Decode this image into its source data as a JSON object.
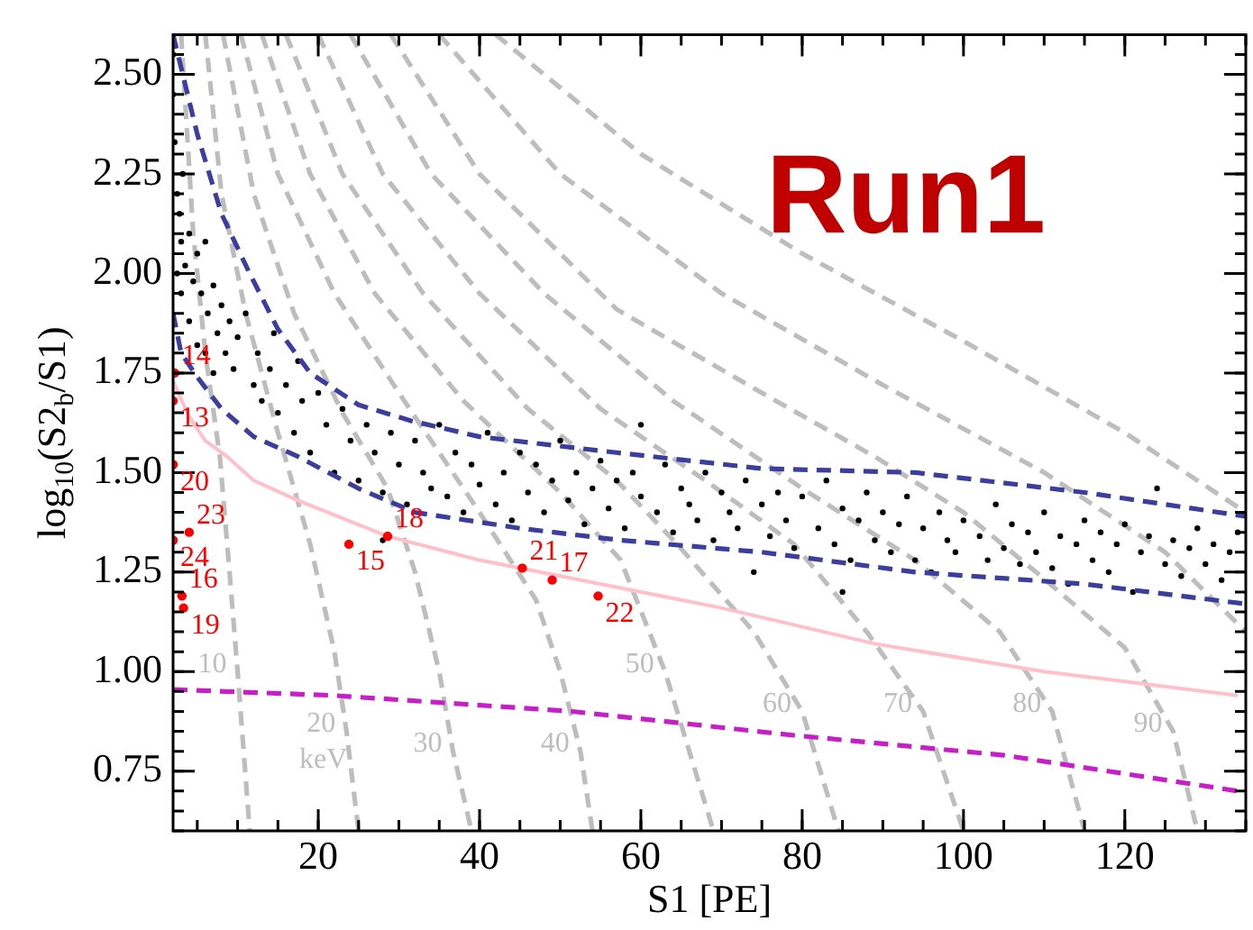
{
  "chart_data": {
    "type": "scatter",
    "xlabel": "S1 [PE]",
    "ylabel": "log$_{10}$(S2$_{b}$/S1)",
    "xlim": [
      2,
      135
    ],
    "ylim": [
      0.6,
      2.6
    ],
    "xticks": [
      20,
      40,
      60,
      80,
      100,
      120
    ],
    "yticks": [
      {
        "value": 0.75,
        "label": "0.75"
      },
      {
        "value": 1,
        "label": "1.00"
      },
      {
        "value": 1.25,
        "label": "1.25"
      },
      {
        "value": 1.5,
        "label": "1.50"
      },
      {
        "value": 1.75,
        "label": "1.75"
      },
      {
        "value": 2,
        "label": "2.00"
      },
      {
        "value": 2.25,
        "label": "2.25"
      },
      {
        "value": 2.5,
        "label": "2.50"
      }
    ],
    "grid": false,
    "legend": false,
    "annotations": [
      "Run1",
      "keV",
      {
        "text": "14",
        "x": 2.2,
        "y": 1.75
      },
      {
        "text": "13",
        "x": 2,
        "y": 1.68
      },
      {
        "text": "23",
        "x": 4,
        "y": 1.35
      },
      {
        "text": "20",
        "x": 2,
        "y": 1.52
      },
      {
        "text": "16",
        "x": 3.1,
        "y": 1.19
      },
      {
        "text": "24",
        "x": 2,
        "y": 1.33
      },
      {
        "text": "17",
        "x": 49,
        "y": 1.23
      },
      {
        "text": "19",
        "x": 3.3,
        "y": 1.16
      },
      {
        "text": "18",
        "x": 28.6,
        "y": 1.34
      },
      {
        "text": "15",
        "x": 23.8,
        "y": 1.32
      },
      {
        "text": "21",
        "x": 45.3,
        "y": 1.26
      },
      {
        "text": "22",
        "x": 54.7,
        "y": 1.19
      }
    ],
    "series": [
      {
        "type": "line",
        "name": "10",
        "color": "#bdbdbd",
        "line_style": "dashed",
        "marker": "none",
        "x": [
          3,
          4.5,
          6,
          7.8,
          9,
          10,
          11.5
        ],
        "values": [
          2.6,
          2.1,
          1.8,
          1.54,
          1.25,
          1.0,
          0.6
        ]
      },
      {
        "type": "line",
        "name": "20",
        "color": "#bdbdbd",
        "line_style": "dashed",
        "marker": "none",
        "x": [
          6,
          8,
          11,
          15,
          19,
          22,
          23.5,
          25
        ],
        "values": [
          2.6,
          2.2,
          1.9,
          1.6,
          1.32,
          1.05,
          0.85,
          0.6
        ]
      },
      {
        "type": "line",
        "name": "30",
        "color": "#bdbdbd",
        "line_style": "dashed",
        "marker": "none",
        "x": [
          8.2,
          12,
          17,
          23,
          28.6,
          32,
          35,
          36.7,
          39
        ],
        "values": [
          2.6,
          2.2,
          1.9,
          1.65,
          1.46,
          1.25,
          1.0,
          0.8,
          0.6
        ]
      },
      {
        "type": "line",
        "name": "40",
        "color": "#bdbdbd",
        "line_style": "dashed",
        "marker": "none",
        "x": [
          10.4,
          15,
          22,
          30,
          40,
          47,
          50,
          52.5,
          54
        ],
        "values": [
          2.6,
          2.25,
          1.95,
          1.7,
          1.4,
          1.18,
          1.0,
          0.8,
          0.6
        ]
      },
      {
        "type": "line",
        "name": "50",
        "color": "#bdbdbd",
        "line_style": "dashed",
        "marker": "none",
        "x": [
          13,
          19,
          27,
          38,
          50,
          57.5,
          63,
          69
        ],
        "values": [
          2.6,
          2.25,
          1.95,
          1.68,
          1.45,
          1.28,
          1.0,
          0.6
        ]
      },
      {
        "type": "line",
        "name": "60",
        "color": "#bdbdbd",
        "line_style": "dashed",
        "marker": "none",
        "x": [
          16,
          23,
          33,
          46,
          57,
          64.5,
          74,
          80,
          84.5
        ],
        "values": [
          2.6,
          2.25,
          1.95,
          1.66,
          1.48,
          1.32,
          1.1,
          0.9,
          0.6
        ]
      },
      {
        "type": "line",
        "name": "70",
        "color": "#bdbdbd",
        "line_style": "dashed",
        "marker": "none",
        "x": [
          20,
          28,
          40,
          55,
          68,
          79,
          88,
          95,
          100
        ],
        "values": [
          2.6,
          2.25,
          1.95,
          1.66,
          1.48,
          1.32,
          1.1,
          0.9,
          0.6
        ]
      },
      {
        "type": "line",
        "name": "80",
        "color": "#bdbdbd",
        "line_style": "dashed",
        "marker": "none",
        "x": [
          24,
          34,
          48,
          64,
          80,
          94,
          104.5,
          111,
          115
        ],
        "values": [
          2.6,
          2.25,
          1.95,
          1.68,
          1.46,
          1.28,
          1.1,
          0.9,
          0.6
        ]
      },
      {
        "type": "line",
        "name": "90",
        "color": "#bdbdbd",
        "line_style": "dashed",
        "marker": "none",
        "x": [
          29,
          40,
          57,
          75,
          89,
          100,
          109,
          120,
          126,
          129
        ],
        "values": [
          2.6,
          2.25,
          1.91,
          1.7,
          1.54,
          1.4,
          1.25,
          1.06,
          0.85,
          0.6
        ]
      },
      {
        "type": "line",
        "color": "#bdbdbd",
        "line_style": "dashed",
        "marker": "none",
        "x": [
          35,
          50,
          70,
          90,
          110,
          125,
          135
        ],
        "values": [
          2.6,
          2.25,
          1.95,
          1.72,
          1.5,
          1.3,
          1.1
        ]
      },
      {
        "type": "line",
        "color": "#bdbdbd",
        "line_style": "dashed",
        "marker": "none",
        "x": [
          42,
          60,
          80,
          100,
          120,
          135
        ],
        "values": [
          2.6,
          2.3,
          2.05,
          1.83,
          1.6,
          1.4
        ]
      },
      {
        "type": "line",
        "color": "#ffc0cb",
        "line_style": "solid",
        "marker": "none",
        "x": [
          2,
          4,
          6,
          8.7,
          12,
          17.5,
          28.6,
          40,
          57.5,
          70,
          89,
          110,
          134
        ],
        "values": [
          1.73,
          1.64,
          1.58,
          1.54,
          1.48,
          1.43,
          1.34,
          1.28,
          1.21,
          1.16,
          1.07,
          1.0,
          0.94
        ]
      },
      {
        "type": "line",
        "color": "#c81ec8",
        "line_style": "dashed",
        "marker": "none",
        "x": [
          2,
          22,
          51.5,
          79,
          105,
          134
        ],
        "values": [
          0.955,
          0.94,
          0.9,
          0.84,
          0.79,
          0.7
        ]
      },
      {
        "color": "#000000",
        "marker": "circle",
        "x": [
          2,
          2,
          2.2,
          2.5,
          2.8,
          3,
          3.2,
          3.5,
          4,
          4.5,
          5,
          5.5,
          6,
          6.3,
          7,
          7.5,
          8,
          8.5,
          9,
          9.5,
          10,
          3,
          4,
          5,
          6,
          7,
          2.5,
          11,
          12,
          12.5,
          13,
          14,
          14.5,
          15,
          16,
          17,
          17.5,
          18,
          19,
          20,
          21,
          22,
          23,
          24,
          25,
          26,
          27,
          28,
          29,
          30,
          31,
          32,
          33,
          34,
          35,
          36,
          37,
          38,
          39,
          40,
          41,
          42,
          43,
          44,
          45,
          46,
          47,
          48,
          49,
          50,
          51,
          52,
          53,
          54,
          55,
          56,
          57,
          58,
          59,
          60,
          62,
          63,
          64,
          65,
          66,
          67,
          68,
          69,
          70,
          71,
          72,
          73,
          74,
          75,
          76,
          77,
          78,
          79,
          80,
          82,
          83,
          84,
          85,
          86,
          87,
          88,
          89,
          90,
          91,
          92,
          93,
          94,
          95,
          96,
          97,
          98,
          99,
          100,
          102,
          103,
          104,
          105,
          106,
          107,
          108,
          109,
          110,
          111,
          112,
          113,
          114,
          115,
          116,
          117,
          118,
          119,
          120,
          121,
          122,
          123,
          124,
          125,
          126,
          127,
          128,
          129,
          130,
          131,
          132,
          133,
          134,
          60,
          85,
          28
        ],
        "values": [
          2.55,
          2.45,
          2.33,
          2.2,
          2.15,
          2.08,
          2.25,
          2.02,
          2.1,
          1.98,
          2.05,
          1.95,
          2.08,
          1.9,
          1.97,
          1.85,
          1.92,
          1.8,
          1.88,
          1.76,
          1.84,
          1.95,
          1.88,
          1.82,
          1.8,
          1.75,
          2.0,
          1.9,
          1.72,
          1.8,
          1.68,
          1.76,
          1.85,
          1.65,
          1.72,
          1.6,
          1.78,
          1.68,
          1.55,
          1.7,
          1.62,
          1.5,
          1.66,
          1.58,
          1.48,
          1.62,
          1.55,
          1.45,
          1.6,
          1.52,
          1.42,
          1.58,
          1.5,
          1.46,
          1.62,
          1.44,
          1.55,
          1.4,
          1.52,
          1.47,
          1.6,
          1.42,
          1.5,
          1.38,
          1.55,
          1.45,
          1.52,
          1.4,
          1.48,
          1.58,
          1.43,
          1.5,
          1.37,
          1.46,
          1.53,
          1.41,
          1.48,
          1.36,
          1.5,
          1.44,
          1.4,
          1.52,
          1.35,
          1.46,
          1.42,
          1.38,
          1.5,
          1.33,
          1.45,
          1.4,
          1.36,
          1.48,
          1.25,
          1.42,
          1.34,
          1.45,
          1.38,
          1.31,
          1.44,
          1.36,
          1.48,
          1.32,
          1.41,
          1.28,
          1.38,
          1.45,
          1.33,
          1.4,
          1.3,
          1.37,
          1.44,
          1.28,
          1.36,
          1.25,
          1.4,
          1.33,
          1.3,
          1.38,
          1.34,
          1.28,
          1.42,
          1.31,
          1.37,
          1.27,
          1.35,
          1.3,
          1.4,
          1.26,
          1.34,
          1.22,
          1.32,
          1.38,
          1.28,
          1.35,
          1.25,
          1.32,
          1.37,
          1.2,
          1.3,
          1.34,
          1.46,
          1.27,
          1.33,
          1.24,
          1.31,
          1.36,
          1.27,
          1.32,
          1.23,
          1.3,
          1.35,
          1.62,
          1.2,
          1.33
        ]
      },
      {
        "color": "#ff0000",
        "marker": "circle",
        "x": [
          2.2,
          2,
          4,
          2,
          3.1,
          2,
          49,
          3.3,
          28.6,
          23.8,
          45.3,
          54.7
        ],
        "values": [
          1.75,
          1.68,
          1.35,
          1.52,
          1.19,
          1.33,
          1.23,
          1.16,
          1.34,
          1.32,
          1.26,
          1.19
        ]
      },
      {
        "type": "line",
        "color": "#3d3d9e",
        "line_style": "dashed",
        "marker": "none",
        "x": [
          2,
          5,
          8,
          11.5,
          15,
          19,
          25,
          31.5,
          40,
          57,
          75,
          94,
          115,
          135
        ],
        "values": [
          2.6,
          2.35,
          2.15,
          2.0,
          1.86,
          1.75,
          1.67,
          1.63,
          1.59,
          1.55,
          1.51,
          1.5,
          1.45,
          1.39
        ]
      },
      {
        "type": "line",
        "color": "#3d3d9e",
        "line_style": "dashed",
        "marker": "none",
        "x": [
          2,
          3,
          5,
          8,
          12,
          17.5,
          25,
          32,
          45,
          57.5,
          75,
          94,
          115,
          135
        ],
        "values": [
          1.9,
          1.8,
          1.74,
          1.66,
          1.59,
          1.54,
          1.46,
          1.4,
          1.36,
          1.33,
          1.3,
          1.25,
          1.22,
          1.17
        ]
      }
    ]
  }
}
